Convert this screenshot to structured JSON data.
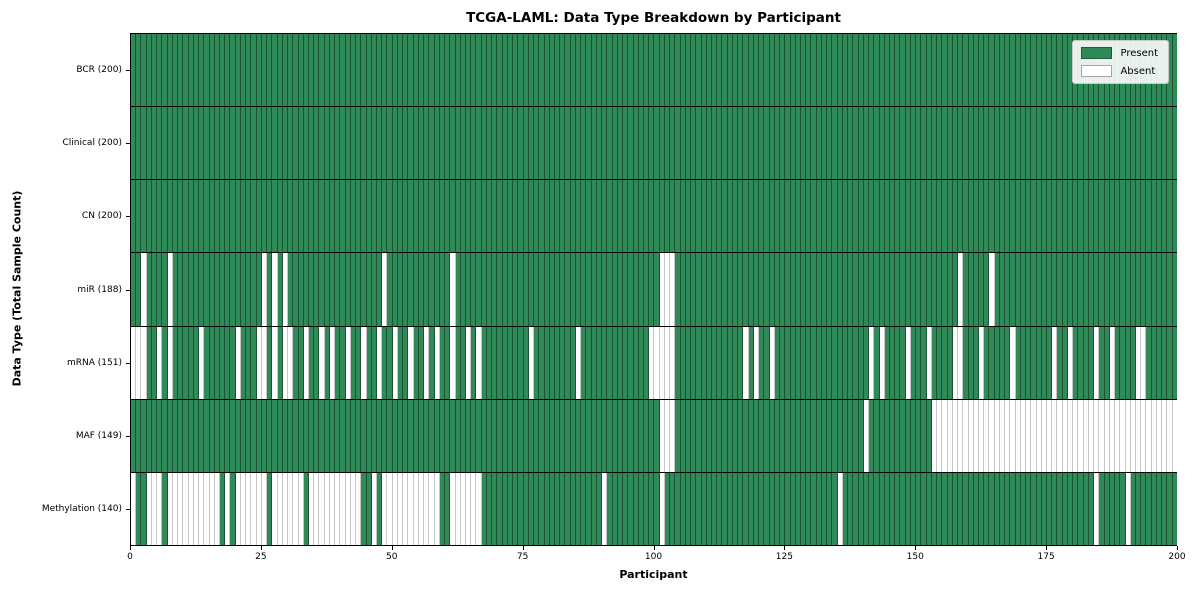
{
  "title": "TCGA-LAML: Data Type Breakdown by Participant",
  "axes": {
    "xlabel": "Participant",
    "ylabel": "Data Type (Total Sample Count)"
  },
  "legend": {
    "items": [
      {
        "label": "Present",
        "color": "#2E8B57"
      },
      {
        "label": "Absent",
        "color": "#FFFFFF"
      }
    ]
  },
  "colors": {
    "present": "#2E8B57",
    "absent": "#FFFFFF",
    "row_divider": "#000000"
  },
  "chart_data": {
    "type": "heatmap",
    "title": "TCGA-LAML: Data Type Breakdown by Participant",
    "xlabel": "Participant",
    "ylabel": "Data Type (Total Sample Count)",
    "x_ticks": [
      0,
      25,
      50,
      75,
      100,
      125,
      150,
      175,
      200
    ],
    "xlim": [
      0,
      200
    ],
    "n_participants": 200,
    "grid": false,
    "legend_position": "upper right",
    "value_legend": [
      "Present",
      "Absent"
    ],
    "rows": [
      {
        "label": "BCR (200)",
        "name": "BCR",
        "present_count": 200,
        "absent_indices": []
      },
      {
        "label": "Clinical (200)",
        "name": "Clinical",
        "present_count": 200,
        "absent_indices": []
      },
      {
        "label": "CN (200)",
        "name": "CN",
        "present_count": 200,
        "absent_indices": []
      },
      {
        "label": "miR (188)",
        "name": "miR",
        "present_count": 188,
        "absent_indices": [
          2,
          7,
          25,
          27,
          29,
          48,
          61,
          101,
          102,
          103,
          158,
          164
        ]
      },
      {
        "label": "mRNA (151)",
        "name": "mRNA",
        "present_count": 151,
        "absent_indices": [
          0,
          1,
          2,
          5,
          7,
          13,
          20,
          24,
          25,
          27,
          29,
          30,
          33,
          36,
          38,
          41,
          44,
          47,
          50,
          53,
          56,
          58,
          61,
          64,
          66,
          76,
          85,
          99,
          100,
          101,
          102,
          103,
          117,
          119,
          122,
          141,
          143,
          148,
          152,
          157,
          158,
          162,
          168,
          176,
          179,
          184,
          187,
          192,
          193
        ]
      },
      {
        "label": "MAF (149)",
        "name": "MAF",
        "present_count": 149,
        "absent_indices": [
          101,
          102,
          103,
          140,
          153,
          154,
          155,
          156,
          157,
          158,
          159,
          160,
          161,
          162,
          163,
          164,
          165,
          166,
          167,
          168,
          169,
          170,
          171,
          172,
          173,
          174,
          175,
          176,
          177,
          178,
          179,
          180,
          181,
          182,
          183,
          184,
          185,
          186,
          187,
          188,
          189,
          190,
          191,
          192,
          193,
          194,
          195,
          196,
          197,
          198,
          199
        ]
      },
      {
        "label": "Methylation (140)",
        "name": "Methylation",
        "present_count": 140,
        "absent_indices": [
          0,
          3,
          4,
          5,
          7,
          8,
          9,
          10,
          11,
          12,
          13,
          14,
          15,
          16,
          18,
          20,
          21,
          22,
          23,
          24,
          25,
          27,
          28,
          29,
          30,
          31,
          32,
          34,
          35,
          36,
          37,
          38,
          39,
          40,
          41,
          42,
          43,
          46,
          48,
          49,
          50,
          51,
          52,
          53,
          54,
          55,
          56,
          57,
          58,
          61,
          62,
          63,
          64,
          65,
          66,
          90,
          101,
          135,
          184,
          190
        ]
      }
    ]
  }
}
